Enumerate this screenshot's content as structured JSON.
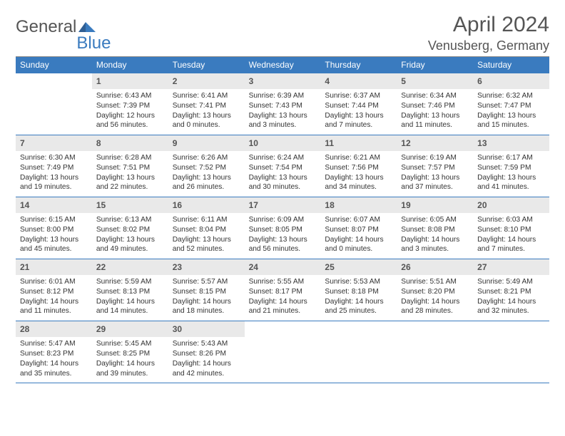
{
  "brand": {
    "part1": "General",
    "part2": "Blue"
  },
  "header": {
    "title": "April 2024",
    "location": "Venusberg, Germany"
  },
  "colors": {
    "accent": "#3a7bbf",
    "daynum_bg": "#e9e9e9",
    "text": "#333333",
    "muted": "#555555"
  },
  "dayNames": [
    "Sunday",
    "Monday",
    "Tuesday",
    "Wednesday",
    "Thursday",
    "Friday",
    "Saturday"
  ],
  "weeks": [
    [
      {
        "n": "",
        "sr": "",
        "ss": "",
        "dl1": "",
        "dl2": ""
      },
      {
        "n": "1",
        "sr": "Sunrise: 6:43 AM",
        "ss": "Sunset: 7:39 PM",
        "dl1": "Daylight: 12 hours",
        "dl2": "and 56 minutes."
      },
      {
        "n": "2",
        "sr": "Sunrise: 6:41 AM",
        "ss": "Sunset: 7:41 PM",
        "dl1": "Daylight: 13 hours",
        "dl2": "and 0 minutes."
      },
      {
        "n": "3",
        "sr": "Sunrise: 6:39 AM",
        "ss": "Sunset: 7:43 PM",
        "dl1": "Daylight: 13 hours",
        "dl2": "and 3 minutes."
      },
      {
        "n": "4",
        "sr": "Sunrise: 6:37 AM",
        "ss": "Sunset: 7:44 PM",
        "dl1": "Daylight: 13 hours",
        "dl2": "and 7 minutes."
      },
      {
        "n": "5",
        "sr": "Sunrise: 6:34 AM",
        "ss": "Sunset: 7:46 PM",
        "dl1": "Daylight: 13 hours",
        "dl2": "and 11 minutes."
      },
      {
        "n": "6",
        "sr": "Sunrise: 6:32 AM",
        "ss": "Sunset: 7:47 PM",
        "dl1": "Daylight: 13 hours",
        "dl2": "and 15 minutes."
      }
    ],
    [
      {
        "n": "7",
        "sr": "Sunrise: 6:30 AM",
        "ss": "Sunset: 7:49 PM",
        "dl1": "Daylight: 13 hours",
        "dl2": "and 19 minutes."
      },
      {
        "n": "8",
        "sr": "Sunrise: 6:28 AM",
        "ss": "Sunset: 7:51 PM",
        "dl1": "Daylight: 13 hours",
        "dl2": "and 22 minutes."
      },
      {
        "n": "9",
        "sr": "Sunrise: 6:26 AM",
        "ss": "Sunset: 7:52 PM",
        "dl1": "Daylight: 13 hours",
        "dl2": "and 26 minutes."
      },
      {
        "n": "10",
        "sr": "Sunrise: 6:24 AM",
        "ss": "Sunset: 7:54 PM",
        "dl1": "Daylight: 13 hours",
        "dl2": "and 30 minutes."
      },
      {
        "n": "11",
        "sr": "Sunrise: 6:21 AM",
        "ss": "Sunset: 7:56 PM",
        "dl1": "Daylight: 13 hours",
        "dl2": "and 34 minutes."
      },
      {
        "n": "12",
        "sr": "Sunrise: 6:19 AM",
        "ss": "Sunset: 7:57 PM",
        "dl1": "Daylight: 13 hours",
        "dl2": "and 37 minutes."
      },
      {
        "n": "13",
        "sr": "Sunrise: 6:17 AM",
        "ss": "Sunset: 7:59 PM",
        "dl1": "Daylight: 13 hours",
        "dl2": "and 41 minutes."
      }
    ],
    [
      {
        "n": "14",
        "sr": "Sunrise: 6:15 AM",
        "ss": "Sunset: 8:00 PM",
        "dl1": "Daylight: 13 hours",
        "dl2": "and 45 minutes."
      },
      {
        "n": "15",
        "sr": "Sunrise: 6:13 AM",
        "ss": "Sunset: 8:02 PM",
        "dl1": "Daylight: 13 hours",
        "dl2": "and 49 minutes."
      },
      {
        "n": "16",
        "sr": "Sunrise: 6:11 AM",
        "ss": "Sunset: 8:04 PM",
        "dl1": "Daylight: 13 hours",
        "dl2": "and 52 minutes."
      },
      {
        "n": "17",
        "sr": "Sunrise: 6:09 AM",
        "ss": "Sunset: 8:05 PM",
        "dl1": "Daylight: 13 hours",
        "dl2": "and 56 minutes."
      },
      {
        "n": "18",
        "sr": "Sunrise: 6:07 AM",
        "ss": "Sunset: 8:07 PM",
        "dl1": "Daylight: 14 hours",
        "dl2": "and 0 minutes."
      },
      {
        "n": "19",
        "sr": "Sunrise: 6:05 AM",
        "ss": "Sunset: 8:08 PM",
        "dl1": "Daylight: 14 hours",
        "dl2": "and 3 minutes."
      },
      {
        "n": "20",
        "sr": "Sunrise: 6:03 AM",
        "ss": "Sunset: 8:10 PM",
        "dl1": "Daylight: 14 hours",
        "dl2": "and 7 minutes."
      }
    ],
    [
      {
        "n": "21",
        "sr": "Sunrise: 6:01 AM",
        "ss": "Sunset: 8:12 PM",
        "dl1": "Daylight: 14 hours",
        "dl2": "and 11 minutes."
      },
      {
        "n": "22",
        "sr": "Sunrise: 5:59 AM",
        "ss": "Sunset: 8:13 PM",
        "dl1": "Daylight: 14 hours",
        "dl2": "and 14 minutes."
      },
      {
        "n": "23",
        "sr": "Sunrise: 5:57 AM",
        "ss": "Sunset: 8:15 PM",
        "dl1": "Daylight: 14 hours",
        "dl2": "and 18 minutes."
      },
      {
        "n": "24",
        "sr": "Sunrise: 5:55 AM",
        "ss": "Sunset: 8:17 PM",
        "dl1": "Daylight: 14 hours",
        "dl2": "and 21 minutes."
      },
      {
        "n": "25",
        "sr": "Sunrise: 5:53 AM",
        "ss": "Sunset: 8:18 PM",
        "dl1": "Daylight: 14 hours",
        "dl2": "and 25 minutes."
      },
      {
        "n": "26",
        "sr": "Sunrise: 5:51 AM",
        "ss": "Sunset: 8:20 PM",
        "dl1": "Daylight: 14 hours",
        "dl2": "and 28 minutes."
      },
      {
        "n": "27",
        "sr": "Sunrise: 5:49 AM",
        "ss": "Sunset: 8:21 PM",
        "dl1": "Daylight: 14 hours",
        "dl2": "and 32 minutes."
      }
    ],
    [
      {
        "n": "28",
        "sr": "Sunrise: 5:47 AM",
        "ss": "Sunset: 8:23 PM",
        "dl1": "Daylight: 14 hours",
        "dl2": "and 35 minutes."
      },
      {
        "n": "29",
        "sr": "Sunrise: 5:45 AM",
        "ss": "Sunset: 8:25 PM",
        "dl1": "Daylight: 14 hours",
        "dl2": "and 39 minutes."
      },
      {
        "n": "30",
        "sr": "Sunrise: 5:43 AM",
        "ss": "Sunset: 8:26 PM",
        "dl1": "Daylight: 14 hours",
        "dl2": "and 42 minutes."
      },
      {
        "n": "",
        "sr": "",
        "ss": "",
        "dl1": "",
        "dl2": ""
      },
      {
        "n": "",
        "sr": "",
        "ss": "",
        "dl1": "",
        "dl2": ""
      },
      {
        "n": "",
        "sr": "",
        "ss": "",
        "dl1": "",
        "dl2": ""
      },
      {
        "n": "",
        "sr": "",
        "ss": "",
        "dl1": "",
        "dl2": ""
      }
    ]
  ]
}
